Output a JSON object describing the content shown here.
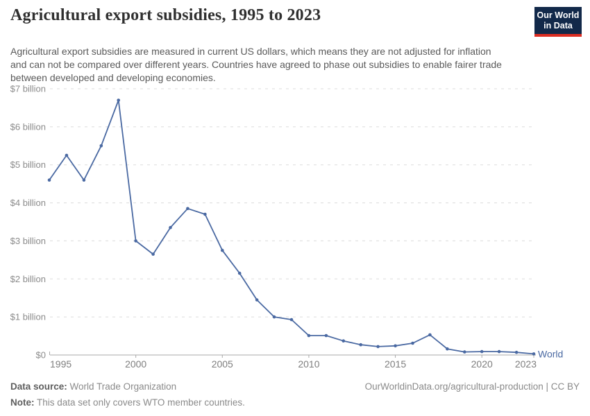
{
  "header": {
    "title": "Agricultural export subsidies, 1995 to 2023",
    "subtitle": "Agricultural export subsidies are measured in current US dollars, which means they are not adjusted for inflation and can not be compared over different years. Countries have agreed to phase out subsidies to enable fairer trade between developed and developing economies.",
    "logo": {
      "line1": "Our World",
      "line2": "in Data",
      "bg_color": "#12294a",
      "accent_color": "#dc2d22"
    }
  },
  "footer": {
    "datasource_label": "Data source:",
    "datasource_value": "World Trade Organization",
    "note_label": "Note:",
    "note_value": "This data set only covers WTO member countries.",
    "link": "OurWorldinData.org/agricultural-production | CC BY"
  },
  "chart_data": {
    "type": "line",
    "title": "Agricultural export subsidies, 1995 to 2023",
    "xlabel": "",
    "ylabel": "",
    "x": [
      1995,
      1996,
      1997,
      1998,
      1999,
      2000,
      2001,
      2002,
      2003,
      2004,
      2005,
      2006,
      2007,
      2008,
      2009,
      2010,
      2011,
      2012,
      2013,
      2014,
      2015,
      2016,
      2017,
      2018,
      2019,
      2020,
      2021,
      2022,
      2023
    ],
    "series": [
      {
        "name": "World",
        "color": "#4a69a2",
        "values": [
          4.6,
          5.25,
          4.6,
          5.5,
          6.7,
          3.0,
          2.65,
          3.35,
          3.85,
          3.7,
          2.75,
          2.15,
          1.45,
          1.0,
          0.93,
          0.51,
          0.51,
          0.37,
          0.27,
          0.22,
          0.24,
          0.31,
          0.53,
          0.16,
          0.08,
          0.09,
          0.09,
          0.07,
          0.03
        ]
      }
    ],
    "ylim": [
      0,
      7
    ],
    "yticks": [
      {
        "value": 0,
        "label": "$0"
      },
      {
        "value": 1,
        "label": "$1 billion"
      },
      {
        "value": 2,
        "label": "$2 billion"
      },
      {
        "value": 3,
        "label": "$3 billion"
      },
      {
        "value": 4,
        "label": "$4 billion"
      },
      {
        "value": 5,
        "label": "$5 billion"
      },
      {
        "value": 6,
        "label": "$6 billion"
      },
      {
        "value": 7,
        "label": "$7 billion"
      }
    ],
    "xticks": [
      1995,
      2000,
      2005,
      2010,
      2015,
      2020,
      2023
    ],
    "grid": "horizontal-dashed",
    "legend_position": "end-of-line-label",
    "colors": {
      "gridline": "#dcdcdc",
      "axis": "#a8a8a8",
      "y_tick_label": "#8b8b8b",
      "x_tick_label": "#7e7e7e"
    }
  }
}
